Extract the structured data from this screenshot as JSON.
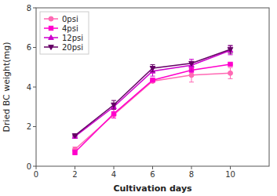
{
  "chart_data": {
    "type": "line",
    "x": [
      2,
      4,
      6,
      8,
      10
    ],
    "series": [
      {
        "name": "0psi",
        "color": "#ff69b4",
        "marker": "circle",
        "values": [
          0.85,
          2.6,
          4.3,
          4.6,
          4.7
        ],
        "errors": [
          0.12,
          0.0,
          0.0,
          0.35,
          0.28
        ]
      },
      {
        "name": "4psi",
        "color": "#ff00cc",
        "marker": "square",
        "values": [
          0.7,
          2.65,
          4.35,
          4.85,
          5.15
        ],
        "errors": [
          0.12,
          0.22,
          0.0,
          0.0,
          0.0
        ]
      },
      {
        "name": "12psi",
        "color": "#cc00cc",
        "marker": "triangle-up",
        "values": [
          1.5,
          3.0,
          4.8,
          5.1,
          5.85
        ],
        "errors": [
          0.0,
          0.0,
          0.25,
          0.3,
          0.22
        ]
      },
      {
        "name": "20psi",
        "color": "#660066",
        "marker": "triangle-down",
        "values": [
          1.55,
          3.1,
          4.95,
          5.2,
          5.9
        ],
        "errors": [
          0.0,
          0.22,
          0.18,
          0.0,
          0.2
        ]
      }
    ],
    "xlabel": "Cultivation days",
    "ylabel": "Dried BC weight(mg)",
    "xlim": [
      0,
      12
    ],
    "ylim": [
      0,
      8
    ],
    "xticks": [
      0,
      2,
      4,
      6,
      8,
      10
    ],
    "yticks": [
      0,
      2,
      4,
      6,
      8
    ],
    "grid": false,
    "legend": "upper left"
  }
}
